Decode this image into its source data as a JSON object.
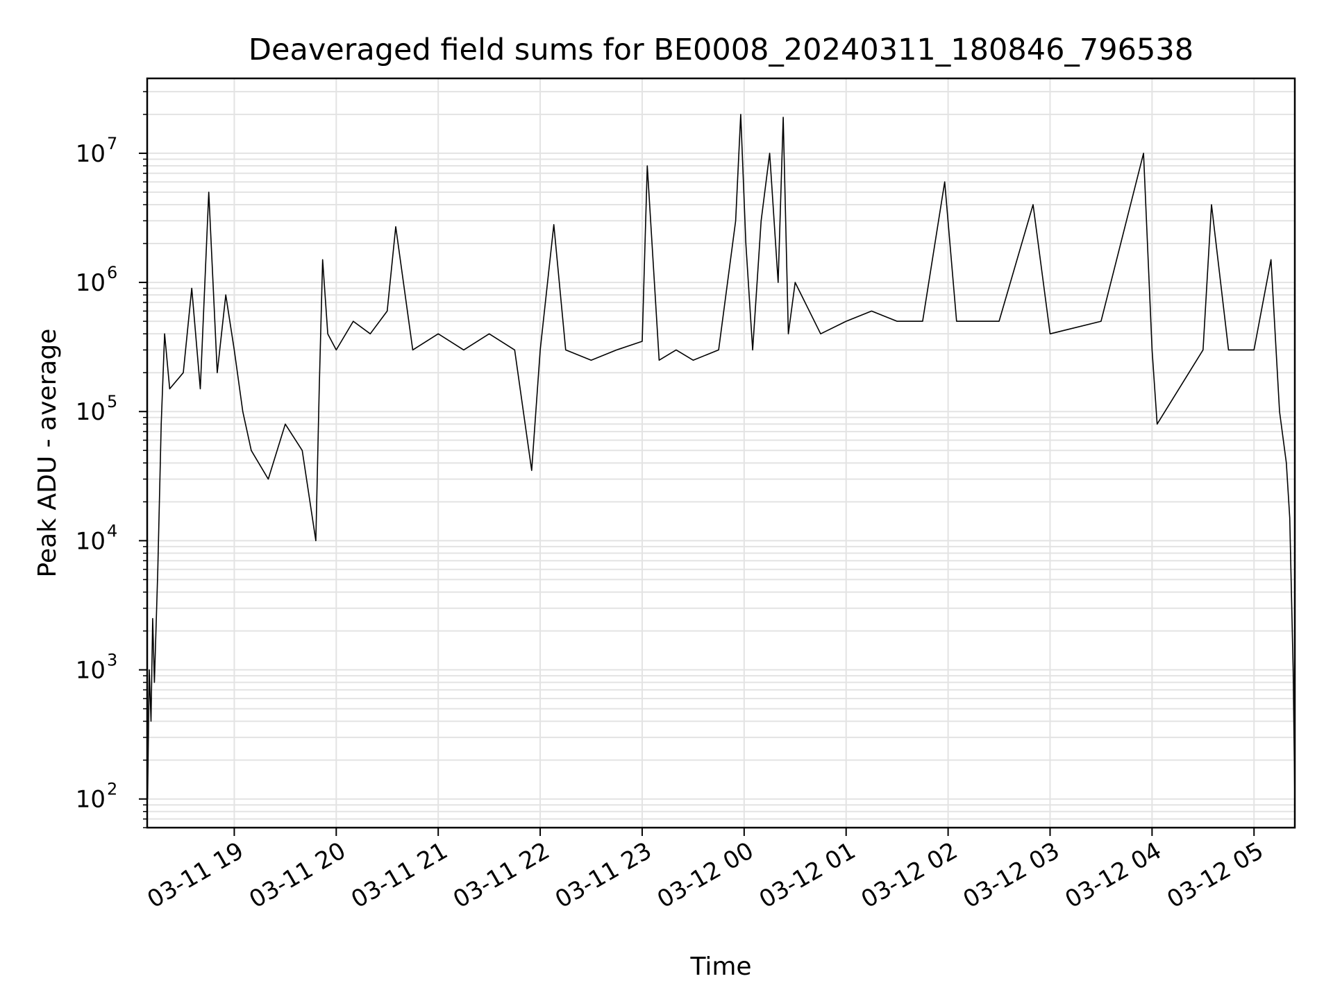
{
  "chart_data": {
    "type": "line",
    "title": "Deaveraged field sums for BE0008_20240311_180846_796538",
    "xlabel": "Time",
    "ylabel": "Peak ADU - average",
    "yscale": "log",
    "ylim": [
      60,
      38000000
    ],
    "xlim": [
      "2024-03-11 18:08:46",
      "2024-03-12 05:24:00"
    ],
    "grid": true,
    "x_ticks": [
      {
        "t": "2024-03-11 19:00",
        "label": "03-11 19"
      },
      {
        "t": "2024-03-11 20:00",
        "label": "03-11 20"
      },
      {
        "t": "2024-03-11 21:00",
        "label": "03-11 21"
      },
      {
        "t": "2024-03-11 22:00",
        "label": "03-11 22"
      },
      {
        "t": "2024-03-11 23:00",
        "label": "03-11 23"
      },
      {
        "t": "2024-03-12 00:00",
        "label": "03-12 00"
      },
      {
        "t": "2024-03-12 01:00",
        "label": "03-12 01"
      },
      {
        "t": "2024-03-12 02:00",
        "label": "03-12 02"
      },
      {
        "t": "2024-03-12 03:00",
        "label": "03-12 03"
      },
      {
        "t": "2024-03-12 04:00",
        "label": "03-12 04"
      },
      {
        "t": "2024-03-12 05:00",
        "label": "03-12 05"
      }
    ],
    "y_ticks": [
      {
        "v": 100,
        "base": "10",
        "exp": "2"
      },
      {
        "v": 1000,
        "base": "10",
        "exp": "3"
      },
      {
        "v": 10000,
        "base": "10",
        "exp": "4"
      },
      {
        "v": 100000,
        "base": "10",
        "exp": "5"
      },
      {
        "v": 1000000,
        "base": "10",
        "exp": "6"
      },
      {
        "v": 10000000,
        "base": "10",
        "exp": "7"
      }
    ],
    "series": [
      {
        "color": "#000000",
        "points": [
          [
            "2024-03-11 18:09",
            100
          ],
          [
            "2024-03-11 18:10",
            1000
          ],
          [
            "2024-03-11 18:11",
            400
          ],
          [
            "2024-03-11 18:12",
            2500
          ],
          [
            "2024-03-11 18:13",
            800
          ],
          [
            "2024-03-11 18:15",
            6000
          ],
          [
            "2024-03-11 18:17",
            80000
          ],
          [
            "2024-03-11 18:19",
            400000
          ],
          [
            "2024-03-11 18:22",
            150000
          ],
          [
            "2024-03-11 18:30",
            200000
          ],
          [
            "2024-03-11 18:35",
            900000
          ],
          [
            "2024-03-11 18:40",
            150000
          ],
          [
            "2024-03-11 18:45",
            5000000
          ],
          [
            "2024-03-11 18:50",
            200000
          ],
          [
            "2024-03-11 18:55",
            800000
          ],
          [
            "2024-03-11 19:00",
            300000
          ],
          [
            "2024-03-11 19:05",
            100000
          ],
          [
            "2024-03-11 19:10",
            50000
          ],
          [
            "2024-03-11 19:20",
            30000
          ],
          [
            "2024-03-11 19:30",
            80000
          ],
          [
            "2024-03-11 19:40",
            50000
          ],
          [
            "2024-03-11 19:48",
            10000
          ],
          [
            "2024-03-11 19:50",
            150000
          ],
          [
            "2024-03-11 19:52",
            1500000
          ],
          [
            "2024-03-11 19:55",
            400000
          ],
          [
            "2024-03-11 20:00",
            300000
          ],
          [
            "2024-03-11 20:10",
            500000
          ],
          [
            "2024-03-11 20:20",
            400000
          ],
          [
            "2024-03-11 20:30",
            600000
          ],
          [
            "2024-03-11 20:35",
            2700000
          ],
          [
            "2024-03-11 20:45",
            300000
          ],
          [
            "2024-03-11 21:00",
            400000
          ],
          [
            "2024-03-11 21:15",
            300000
          ],
          [
            "2024-03-11 21:30",
            400000
          ],
          [
            "2024-03-11 21:45",
            300000
          ],
          [
            "2024-03-11 21:55",
            35000
          ],
          [
            "2024-03-11 22:00",
            300000
          ],
          [
            "2024-03-11 22:08",
            2800000
          ],
          [
            "2024-03-11 22:15",
            300000
          ],
          [
            "2024-03-11 22:30",
            250000
          ],
          [
            "2024-03-11 22:45",
            300000
          ],
          [
            "2024-03-11 23:00",
            350000
          ],
          [
            "2024-03-11 23:03",
            8000000
          ],
          [
            "2024-03-11 23:10",
            250000
          ],
          [
            "2024-03-11 23:20",
            300000
          ],
          [
            "2024-03-11 23:30",
            250000
          ],
          [
            "2024-03-11 23:45",
            300000
          ],
          [
            "2024-03-11 23:55",
            3000000
          ],
          [
            "2024-03-11 23:58",
            20000000
          ],
          [
            "2024-03-12 00:01",
            2000000
          ],
          [
            "2024-03-12 00:05",
            300000
          ],
          [
            "2024-03-12 00:10",
            3000000
          ],
          [
            "2024-03-12 00:15",
            10000000
          ],
          [
            "2024-03-12 00:20",
            1000000
          ],
          [
            "2024-03-12 00:23",
            19000000
          ],
          [
            "2024-03-12 00:26",
            400000
          ],
          [
            "2024-03-12 00:30",
            1000000
          ],
          [
            "2024-03-12 00:45",
            400000
          ],
          [
            "2024-03-12 01:00",
            500000
          ],
          [
            "2024-03-12 01:15",
            600000
          ],
          [
            "2024-03-12 01:30",
            500000
          ],
          [
            "2024-03-12 01:45",
            500000
          ],
          [
            "2024-03-12 01:58",
            6000000
          ],
          [
            "2024-03-12 02:05",
            500000
          ],
          [
            "2024-03-12 02:30",
            500000
          ],
          [
            "2024-03-12 02:50",
            4000000
          ],
          [
            "2024-03-12 03:00",
            400000
          ],
          [
            "2024-03-12 03:30",
            500000
          ],
          [
            "2024-03-12 03:55",
            10000000
          ],
          [
            "2024-03-12 04:00",
            300000
          ],
          [
            "2024-03-12 04:03",
            80000
          ],
          [
            "2024-03-12 04:30",
            300000
          ],
          [
            "2024-03-12 04:35",
            4000000
          ],
          [
            "2024-03-12 04:45",
            300000
          ],
          [
            "2024-03-12 05:00",
            300000
          ],
          [
            "2024-03-12 05:10",
            1500000
          ],
          [
            "2024-03-12 05:15",
            100000
          ],
          [
            "2024-03-12 05:19",
            40000
          ],
          [
            "2024-03-12 05:21",
            15000
          ],
          [
            "2024-03-12 05:23",
            1000
          ],
          [
            "2024-03-12 05:24",
            100
          ]
        ]
      }
    ]
  }
}
